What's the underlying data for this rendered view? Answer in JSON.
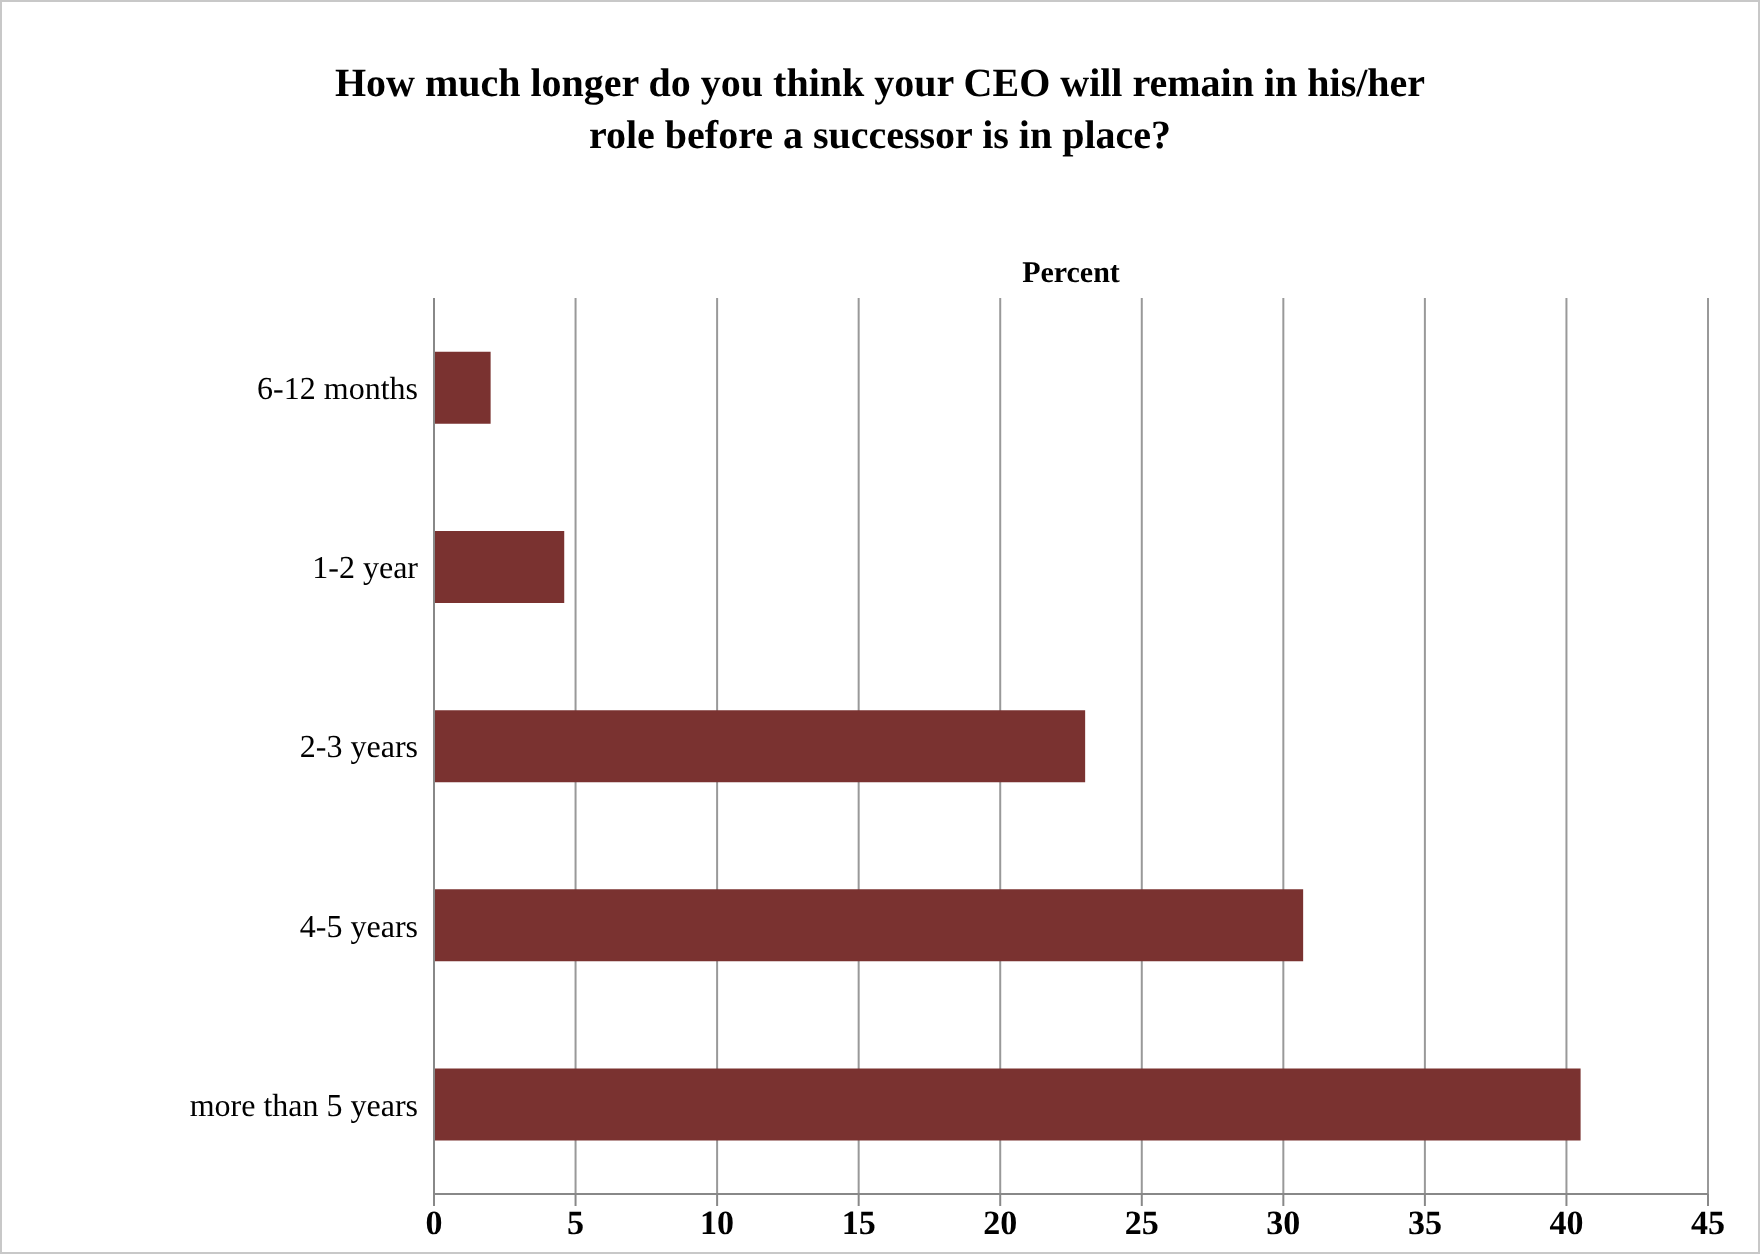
{
  "chart_data": {
    "type": "bar",
    "orientation": "horizontal",
    "title": "How much longer do you think your CEO will remain in his/her role before a successor is in place?",
    "xlabel": "Percent",
    "categories": [
      "6-12 months",
      "1-2 year",
      "2-3 years",
      "4-5 years",
      "more than 5 years"
    ],
    "values": [
      2,
      4.6,
      23,
      30.7,
      40.5
    ],
    "color": "#7a3230",
    "xlim": [
      0,
      45
    ],
    "xticks": [
      0,
      5,
      10,
      15,
      20,
      25,
      30,
      35,
      40,
      45
    ],
    "grid": "x"
  }
}
